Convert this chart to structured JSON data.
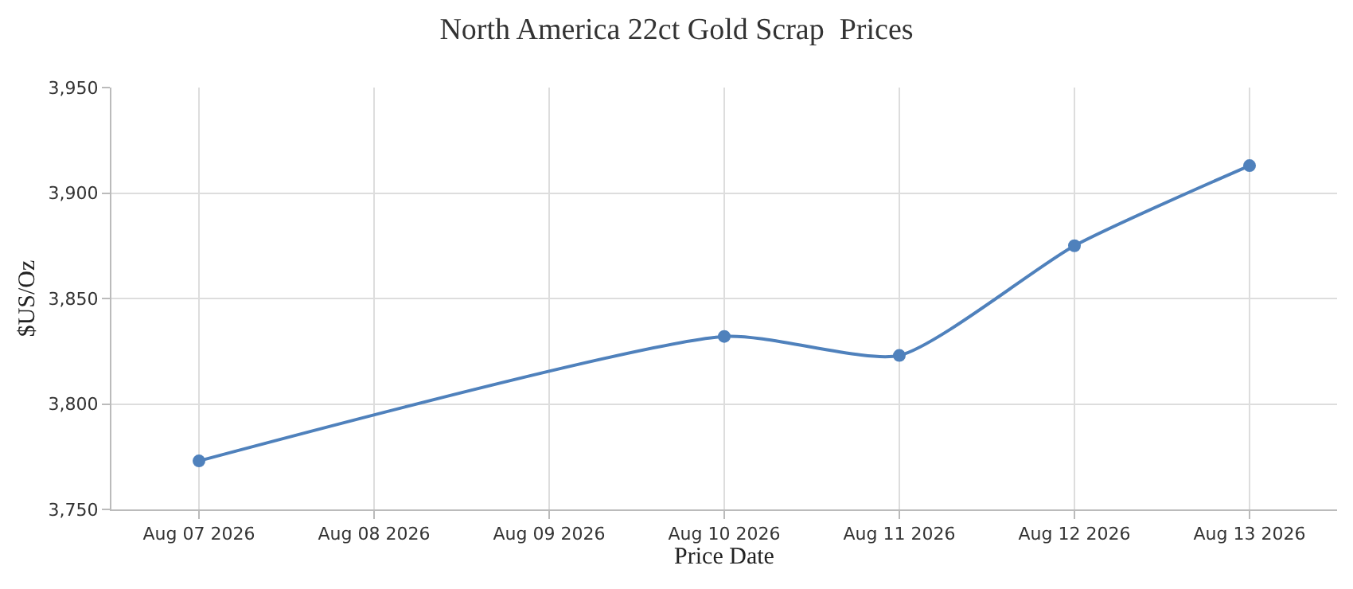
{
  "chart_data": {
    "type": "line",
    "title": "North America 22ct Gold Scrap  Prices",
    "xlabel": "Price Date",
    "ylabel": "$US/Oz",
    "x": [
      "2026-08-07",
      "2026-08-10",
      "2026-08-11",
      "2026-08-12",
      "2026-08-13"
    ],
    "series": [
      {
        "color": "#4f81bc",
        "values": [
          3773,
          3832,
          3823,
          3875,
          3913
        ]
      }
    ],
    "xlim": [
      "2026-08-06T12:00",
      "2026-08-13T12:00"
    ],
    "xticks": [
      {
        "value": "2026-08-07",
        "label": "Aug 07 2026"
      },
      {
        "value": "2026-08-08",
        "label": "Aug 08 2026"
      },
      {
        "value": "2026-08-09",
        "label": "Aug 09 2026"
      },
      {
        "value": "2026-08-10",
        "label": "Aug 10 2026"
      },
      {
        "value": "2026-08-11",
        "label": "Aug 11 2026"
      },
      {
        "value": "2026-08-12",
        "label": "Aug 12 2026"
      },
      {
        "value": "2026-08-13",
        "label": "Aug 13 2026"
      }
    ],
    "ylim": [
      3750,
      3950
    ],
    "yticks": [
      {
        "value": 3750,
        "label": "3,750"
      },
      {
        "value": 3800,
        "label": "3,800"
      },
      {
        "value": 3850,
        "label": "3,850"
      },
      {
        "value": 3900,
        "label": "3,900"
      },
      {
        "value": 3950,
        "label": "3,950"
      }
    ],
    "grid": true,
    "marker": "circle",
    "line_style": "solid"
  }
}
